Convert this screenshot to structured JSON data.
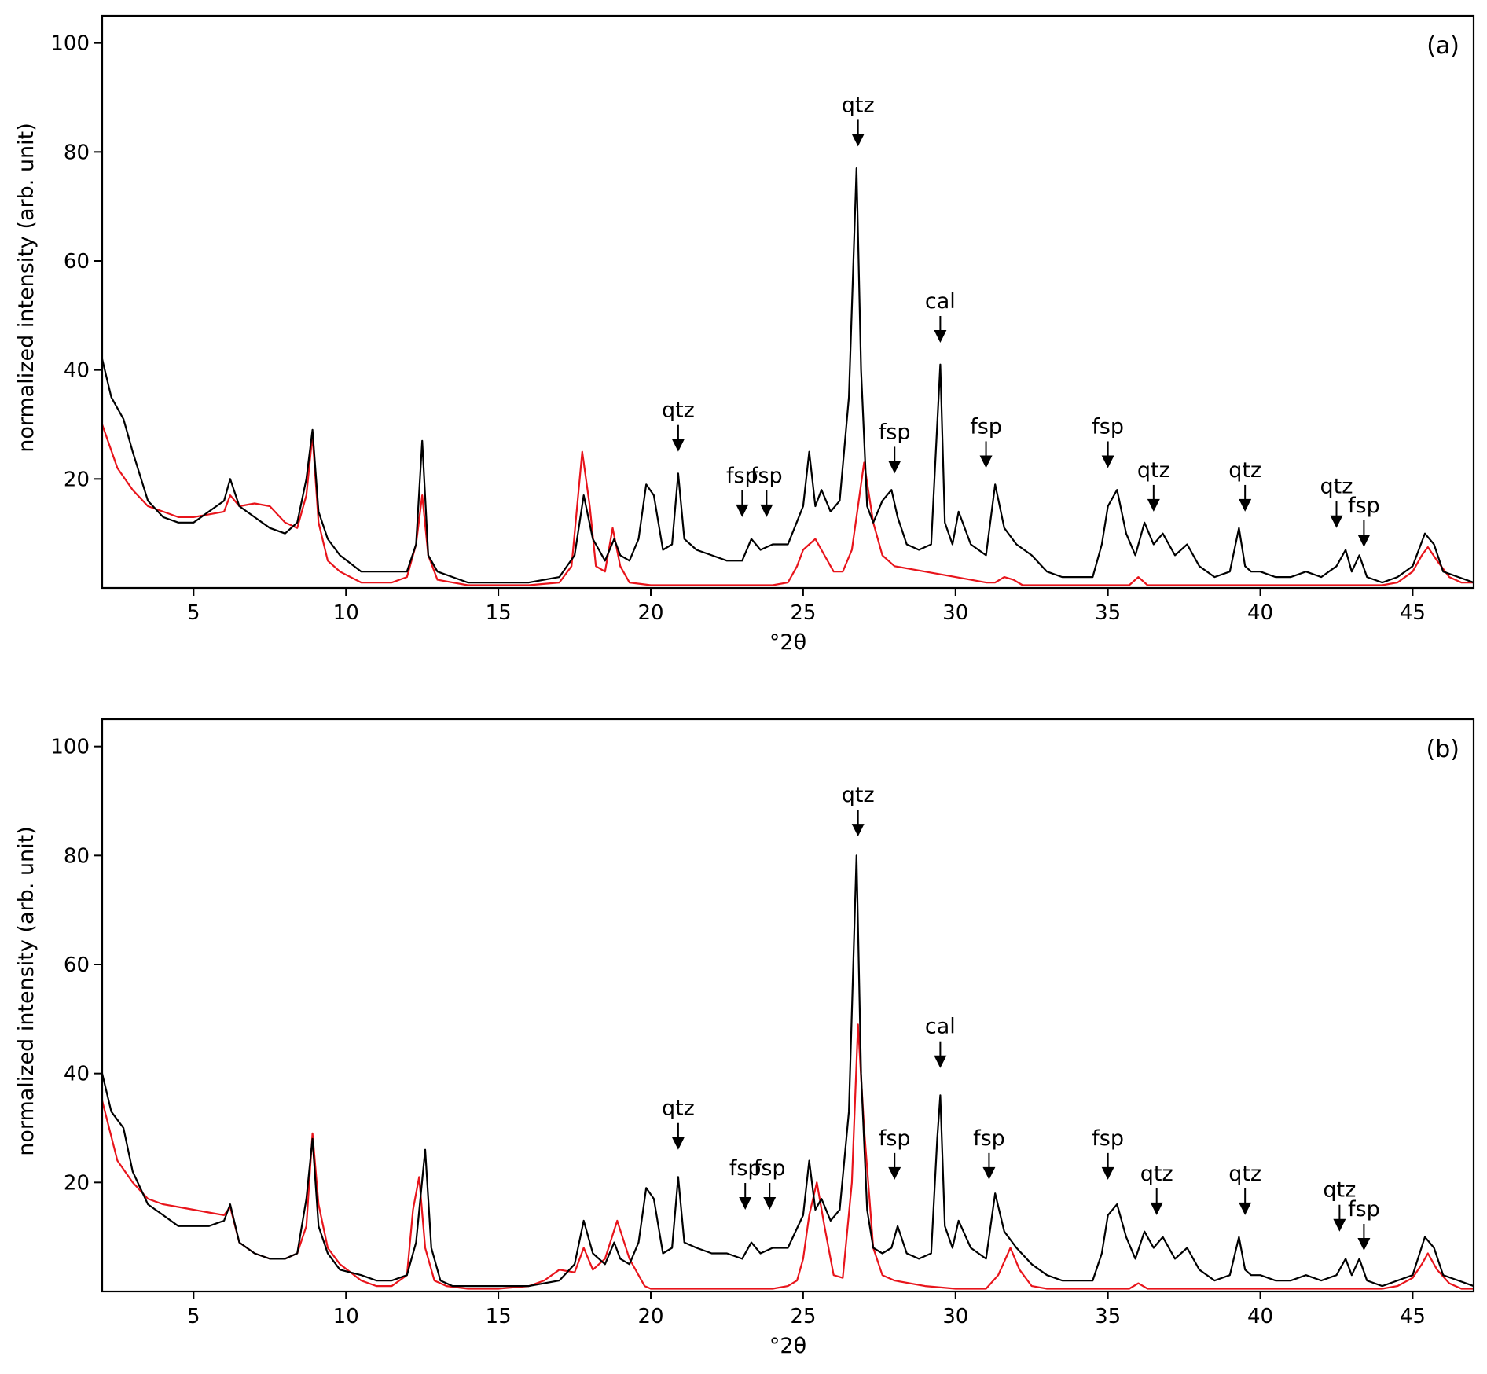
{
  "colors": {
    "sample": "#000000",
    "modeled": "#e8141b",
    "frame": "#000000"
  },
  "chart_data": [
    {
      "type": "line",
      "panel_label": "(a)",
      "xlabel": "°2θ",
      "ylabel": "normalized intensity (arb. unit)",
      "xlim": [
        2,
        47
      ],
      "ylim": [
        0,
        105
      ],
      "xticks": [
        5,
        10,
        15,
        20,
        25,
        30,
        35,
        40,
        45
      ],
      "yticks": [
        20,
        40,
        60,
        80,
        100
      ],
      "grid": false,
      "legend": "none",
      "series": [
        {
          "color": "#000000",
          "x": [
            2,
            2.3,
            2.7,
            3,
            3.5,
            4,
            4.5,
            5,
            5.5,
            6,
            6.2,
            6.5,
            7,
            7.5,
            8,
            8.4,
            8.7,
            8.9,
            9.1,
            9.4,
            9.8,
            10.5,
            11,
            11.5,
            12,
            12.3,
            12.5,
            12.7,
            13,
            13.5,
            14,
            15,
            16,
            17,
            17.5,
            17.8,
            18.1,
            18.5,
            18.8,
            19,
            19.3,
            19.6,
            19.85,
            20.1,
            20.4,
            20.7,
            20.9,
            21.1,
            21.5,
            22,
            22.5,
            23,
            23.3,
            23.6,
            24,
            24.5,
            25,
            25.2,
            25.4,
            25.6,
            25.9,
            26.2,
            26.5,
            26.75,
            26.9,
            27.1,
            27.3,
            27.6,
            27.9,
            28.1,
            28.4,
            28.8,
            29.2,
            29.4,
            29.5,
            29.65,
            29.9,
            30.1,
            30.5,
            31,
            31.3,
            31.6,
            32,
            32.5,
            33,
            33.5,
            34,
            34.5,
            34.8,
            35,
            35.3,
            35.6,
            35.9,
            36.2,
            36.5,
            36.8,
            37.2,
            37.6,
            38,
            38.5,
            39,
            39.3,
            39.5,
            39.7,
            40,
            40.5,
            41,
            41.5,
            42,
            42.5,
            42.8,
            43,
            43.25,
            43.5,
            44,
            44.5,
            45,
            45.4,
            45.7,
            46,
            46.5,
            47
          ],
          "y": [
            42,
            35,
            31,
            25,
            16,
            13,
            12,
            12,
            14,
            16,
            20,
            15,
            13,
            11,
            10,
            12,
            20,
            29,
            14,
            9,
            6,
            3,
            3,
            3,
            3,
            8,
            27,
            6,
            3,
            2,
            1,
            1,
            1,
            2,
            6,
            17,
            9,
            5,
            9,
            6,
            5,
            9,
            19,
            17,
            7,
            8,
            21,
            9,
            7,
            6,
            5,
            5,
            9,
            7,
            8,
            8,
            15,
            25,
            15,
            18,
            14,
            16,
            35,
            77,
            40,
            15,
            12,
            16,
            18,
            13,
            8,
            7,
            8,
            30,
            41,
            12,
            8,
            14,
            8,
            6,
            19,
            11,
            8,
            6,
            3,
            2,
            2,
            2,
            8,
            15,
            18,
            10,
            6,
            12,
            8,
            10,
            6,
            8,
            4,
            2,
            3,
            11,
            4,
            3,
            3,
            2,
            2,
            3,
            2,
            4,
            7,
            3,
            6,
            2,
            1,
            2,
            4,
            10,
            8,
            3,
            2,
            1
          ]
        },
        {
          "color": "#e8141b",
          "x": [
            2,
            2.5,
            3,
            3.5,
            4,
            4.5,
            5,
            5.5,
            6,
            6.2,
            6.5,
            7,
            7.5,
            8,
            8.4,
            8.7,
            8.9,
            9.1,
            9.4,
            9.8,
            10.5,
            11,
            11.5,
            12,
            12.3,
            12.5,
            12.7,
            13,
            13.5,
            14,
            15,
            16,
            17,
            17.4,
            17.75,
            18,
            18.2,
            18.5,
            18.75,
            19,
            19.3,
            20,
            21,
            22,
            23,
            24,
            24.5,
            24.8,
            25,
            25.2,
            25.4,
            25.7,
            26,
            26.3,
            26.6,
            26.8,
            27,
            27.3,
            27.6,
            28,
            29,
            30,
            31,
            31.3,
            31.6,
            31.9,
            32.2,
            33,
            34,
            35,
            35.7,
            36,
            36.3,
            37,
            37.7,
            38,
            39,
            40,
            41,
            42,
            43,
            44,
            44.5,
            45,
            45.3,
            45.5,
            45.8,
            46.2,
            46.6,
            47
          ],
          "y": [
            30,
            22,
            18,
            15,
            14,
            13,
            13,
            13.5,
            14,
            17,
            15,
            15.5,
            15,
            12,
            11,
            17,
            28,
            12,
            5,
            3,
            1,
            1,
            1,
            2,
            8,
            17,
            6,
            1.5,
            1,
            0.5,
            0.5,
            0.5,
            1,
            4,
            25,
            15,
            4,
            3,
            11,
            4,
            1,
            0.5,
            0.5,
            0.5,
            0.5,
            0.5,
            1,
            4,
            7,
            8,
            9,
            6,
            3,
            3,
            7,
            15,
            23,
            12,
            6,
            4,
            3,
            2,
            1,
            1,
            2,
            1.5,
            0.5,
            0.5,
            0.5,
            0.5,
            0.5,
            2,
            0.5,
            0.5,
            0.5,
            0.5,
            0.5,
            0.5,
            0.5,
            0.5,
            0.5,
            0.5,
            1,
            3,
            6,
            7.5,
            5,
            2,
            1,
            1
          ]
        }
      ],
      "annotations": [
        {
          "text": "qtz",
          "x": 26.8,
          "y": 81
        },
        {
          "text": "cal",
          "x": 29.5,
          "y": 45
        },
        {
          "text": "qtz",
          "x": 20.9,
          "y": 25
        },
        {
          "text": "fsp",
          "x": 23.0,
          "y": 13
        },
        {
          "text": "fsp",
          "x": 23.8,
          "y": 13
        },
        {
          "text": "fsp",
          "x": 28.0,
          "y": 21
        },
        {
          "text": "fsp",
          "x": 31.0,
          "y": 22
        },
        {
          "text": "fsp",
          "x": 35.0,
          "y": 22
        },
        {
          "text": "qtz",
          "x": 36.5,
          "y": 14
        },
        {
          "text": "qtz",
          "x": 39.5,
          "y": 14
        },
        {
          "text": "qtz",
          "x": 42.5,
          "y": 11
        },
        {
          "text": "fsp",
          "x": 43.4,
          "y": 7.5
        }
      ]
    },
    {
      "type": "line",
      "panel_label": "(b)",
      "xlabel": "°2θ",
      "ylabel": "normalized intensity (arb. unit)",
      "xlim": [
        2,
        47
      ],
      "ylim": [
        0,
        105
      ],
      "xticks": [
        5,
        10,
        15,
        20,
        25,
        30,
        35,
        40,
        45
      ],
      "yticks": [
        20,
        40,
        60,
        80,
        100
      ],
      "grid": false,
      "legend": "none",
      "series": [
        {
          "color": "#000000",
          "x": [
            2,
            2.3,
            2.7,
            3,
            3.5,
            4,
            4.5,
            5,
            5.5,
            6,
            6.2,
            6.5,
            7,
            7.5,
            8,
            8.4,
            8.7,
            8.9,
            9.1,
            9.4,
            9.8,
            10.5,
            11,
            11.5,
            12,
            12.3,
            12.6,
            12.8,
            13.1,
            13.5,
            14,
            15,
            16,
            17,
            17.5,
            17.8,
            18.1,
            18.5,
            18.8,
            19,
            19.3,
            19.6,
            19.85,
            20.1,
            20.4,
            20.7,
            20.9,
            21.1,
            21.5,
            22,
            22.5,
            23,
            23.3,
            23.6,
            24,
            24.5,
            25,
            25.2,
            25.4,
            25.6,
            25.9,
            26.2,
            26.5,
            26.75,
            26.9,
            27.1,
            27.3,
            27.6,
            27.9,
            28.1,
            28.4,
            28.8,
            29.2,
            29.4,
            29.5,
            29.65,
            29.9,
            30.1,
            30.5,
            31,
            31.3,
            31.6,
            32,
            32.5,
            33,
            33.5,
            34,
            34.5,
            34.8,
            35,
            35.3,
            35.6,
            35.9,
            36.2,
            36.5,
            36.8,
            37.2,
            37.6,
            38,
            38.5,
            39,
            39.3,
            39.5,
            39.7,
            40,
            40.5,
            41,
            41.5,
            42,
            42.5,
            42.8,
            43,
            43.25,
            43.5,
            44,
            44.5,
            45,
            45.4,
            45.7,
            46,
            46.5,
            47
          ],
          "y": [
            40,
            33,
            30,
            22,
            16,
            14,
            12,
            12,
            12,
            13,
            16,
            9,
            7,
            6,
            6,
            7,
            17,
            28,
            12,
            7,
            4,
            3,
            2,
            2,
            3,
            9,
            26,
            8,
            2,
            1,
            1,
            1,
            1,
            2,
            5,
            13,
            7,
            5,
            9,
            6,
            5,
            9,
            19,
            17,
            7,
            8,
            21,
            9,
            8,
            7,
            7,
            6,
            9,
            7,
            8,
            8,
            14,
            24,
            15,
            17,
            13,
            15,
            33,
            80,
            40,
            15,
            8,
            7,
            8,
            12,
            7,
            6,
            7,
            28,
            36,
            12,
            8,
            13,
            8,
            6,
            18,
            11,
            8,
            5,
            3,
            2,
            2,
            2,
            7,
            14,
            16,
            10,
            6,
            11,
            8,
            10,
            6,
            8,
            4,
            2,
            3,
            10,
            4,
            3,
            3,
            2,
            2,
            3,
            2,
            3,
            6,
            3,
            6,
            2,
            1,
            2,
            3,
            10,
            8,
            3,
            2,
            1
          ]
        },
        {
          "color": "#e8141b",
          "x": [
            2,
            2.5,
            3,
            3.5,
            4,
            4.5,
            5,
            5.5,
            6,
            6.2,
            6.5,
            7,
            7.5,
            8,
            8.4,
            8.7,
            8.9,
            9.1,
            9.4,
            9.8,
            10.5,
            11,
            11.5,
            12,
            12.2,
            12.4,
            12.6,
            12.9,
            13.3,
            14,
            15,
            16,
            16.5,
            17,
            17.5,
            17.8,
            18.1,
            18.5,
            18.9,
            19.3,
            19.8,
            20,
            21,
            22,
            23,
            24,
            24.5,
            24.8,
            25,
            25.2,
            25.45,
            25.7,
            26,
            26.3,
            26.6,
            26.8,
            27,
            27.3,
            27.6,
            28,
            29,
            30,
            31,
            31.4,
            31.8,
            32.1,
            32.5,
            33,
            34,
            35,
            35.7,
            36,
            36.3,
            37,
            37.7,
            38,
            39,
            40,
            41,
            42,
            43,
            44,
            44.5,
            45,
            45.3,
            45.5,
            45.8,
            46.2,
            46.6,
            47
          ],
          "y": [
            35,
            24,
            20,
            17,
            16,
            15.5,
            15,
            14.5,
            14,
            15.5,
            9,
            7,
            6,
            6,
            7,
            12,
            29,
            16,
            8,
            5,
            2,
            1,
            1,
            3,
            15,
            21,
            8,
            2,
            1,
            0.5,
            0.5,
            1,
            2,
            4,
            3.5,
            8,
            4,
            6,
            13,
            6,
            1,
            0.5,
            0.5,
            0.5,
            0.5,
            0.5,
            1,
            2,
            6,
            14,
            20,
            12,
            3,
            2.5,
            20,
            49,
            30,
            8,
            3,
            2,
            1,
            0.5,
            0.5,
            3,
            8,
            4,
            1,
            0.5,
            0.5,
            0.5,
            0.5,
            1.5,
            0.5,
            0.5,
            0.5,
            0.5,
            0.5,
            0.5,
            0.5,
            0.5,
            0.5,
            0.5,
            1,
            2.5,
            5,
            7,
            4,
            1.5,
            0.5,
            0.5
          ]
        }
      ],
      "annotations": [
        {
          "text": "qtz",
          "x": 26.8,
          "y": 83.5
        },
        {
          "text": "cal",
          "x": 29.5,
          "y": 41
        },
        {
          "text": "qtz",
          "x": 20.9,
          "y": 26
        },
        {
          "text": "fsp",
          "x": 23.1,
          "y": 15
        },
        {
          "text": "fsp",
          "x": 23.9,
          "y": 15
        },
        {
          "text": "fsp",
          "x": 28.0,
          "y": 20.5
        },
        {
          "text": "fsp",
          "x": 31.1,
          "y": 20.5
        },
        {
          "text": "fsp",
          "x": 35.0,
          "y": 20.5
        },
        {
          "text": "qtz",
          "x": 36.6,
          "y": 14
        },
        {
          "text": "qtz",
          "x": 39.5,
          "y": 14
        },
        {
          "text": "qtz",
          "x": 42.6,
          "y": 11
        },
        {
          "text": "fsp",
          "x": 43.4,
          "y": 7.5
        }
      ]
    }
  ]
}
